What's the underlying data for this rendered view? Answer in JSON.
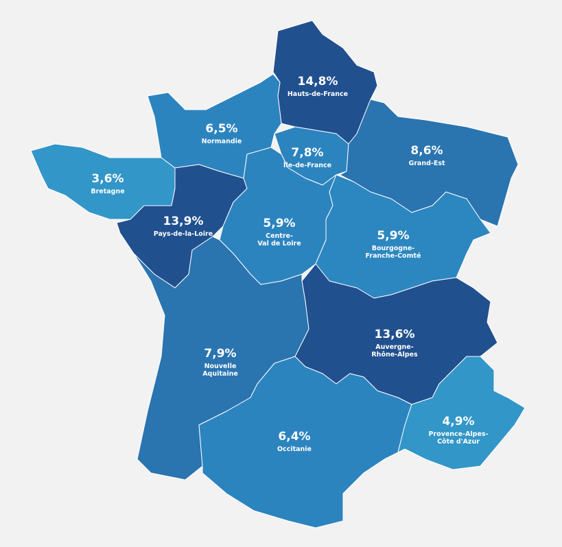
{
  "regions": [
    {
      "name": [
        "Hauts-de-France"
      ],
      "value": "14,8%",
      "color": "#21508f"
    },
    {
      "name": [
        "Normandie"
      ],
      "value": "6,5%",
      "color": "#2c84bf"
    },
    {
      "name": [
        "Bretagne"
      ],
      "value": "3,6%",
      "color": "#3296c8"
    },
    {
      "name": [
        "Pays-de-la-Loire"
      ],
      "value": "13,9%",
      "color": "#21508f"
    },
    {
      "name": [
        "Île-de-France"
      ],
      "value": "7,8%",
      "color": "#2c84bf"
    },
    {
      "name": [
        "Grand-Est"
      ],
      "value": "8,6%",
      "color": "#2a74b0"
    },
    {
      "name": [
        "Centre-",
        "Val de Loire"
      ],
      "value": "5,9%",
      "color": "#2c84bf"
    },
    {
      "name": [
        "Bourgogne-",
        "Franche-Comté"
      ],
      "value": "5,9%",
      "color": "#2c87c0"
    },
    {
      "name": [
        "Auvergne-",
        "Rhône-Alpes"
      ],
      "value": "13,6%",
      "color": "#21508f"
    },
    {
      "name": [
        "Nouvelle",
        "Aquitaine"
      ],
      "value": "7,9%",
      "color": "#2a74b0"
    },
    {
      "name": [
        "Occitanie"
      ],
      "value": "6,4%",
      "color": "#2c84bf"
    },
    {
      "name": [
        "Provence-Alpes-",
        "Côte d'Azur"
      ],
      "value": "4,9%",
      "color": "#3296c8"
    }
  ]
}
